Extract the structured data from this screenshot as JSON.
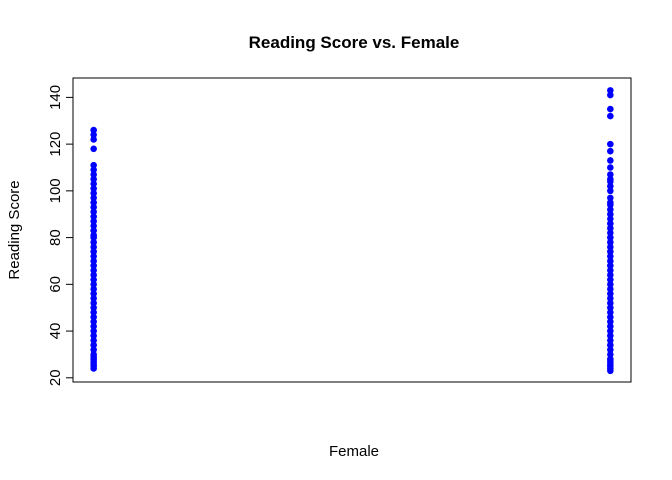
{
  "chart_data": {
    "type": "scatter",
    "title": "Reading Score vs. Female",
    "x_label": "Female",
    "y_label": "Reading Score",
    "color": "#0000ff",
    "xlim": [
      -0.04,
      1.04
    ],
    "ylim": [
      18.2,
      148.3
    ],
    "yticks": [
      20,
      40,
      60,
      80,
      100,
      120,
      140
    ],
    "x": [
      0,
      0,
      0,
      0,
      0,
      0,
      0,
      0,
      0,
      0,
      0,
      0,
      0,
      0,
      0,
      0,
      0,
      0,
      0,
      0,
      0,
      0,
      0,
      0,
      0,
      0,
      0,
      0,
      0,
      0,
      0,
      0,
      0,
      0,
      0,
      0,
      0,
      0,
      0,
      0,
      0,
      0,
      0,
      0,
      0,
      0,
      0,
      0,
      0,
      0,
      0,
      0,
      1,
      1,
      1,
      1,
      1,
      1,
      1,
      1,
      1,
      1,
      1,
      1,
      1,
      1,
      1,
      1,
      1,
      1,
      1,
      1,
      1,
      1,
      1,
      1,
      1,
      1,
      1,
      1,
      1,
      1,
      1,
      1,
      1,
      1,
      1,
      1,
      1,
      1,
      1,
      1,
      1,
      1,
      1,
      1,
      1,
      1,
      1,
      1,
      1,
      1,
      1,
      1,
      1,
      1
    ],
    "values": [
      24,
      25,
      26,
      27,
      28,
      29,
      30,
      32,
      34,
      36,
      38,
      40,
      42,
      44,
      46,
      48,
      50,
      52,
      54,
      56,
      58,
      60,
      62,
      64,
      66,
      68,
      70,
      72,
      74,
      76,
      78,
      80,
      81,
      83,
      85,
      87,
      89,
      91,
      93,
      95,
      97,
      99,
      101,
      103,
      105,
      107,
      109,
      111,
      118,
      122,
      124,
      126,
      23,
      24,
      25,
      26,
      27,
      28,
      30,
      32,
      34,
      36,
      38,
      40,
      42,
      44,
      46,
      48,
      50,
      52,
      54,
      56,
      58,
      60,
      62,
      64,
      66,
      68,
      70,
      72,
      74,
      76,
      78,
      80,
      82,
      84,
      86,
      88,
      90,
      92,
      94,
      95,
      97,
      100,
      102,
      104,
      105,
      107,
      110,
      113,
      117,
      120,
      132,
      135,
      141,
      143
    ]
  }
}
